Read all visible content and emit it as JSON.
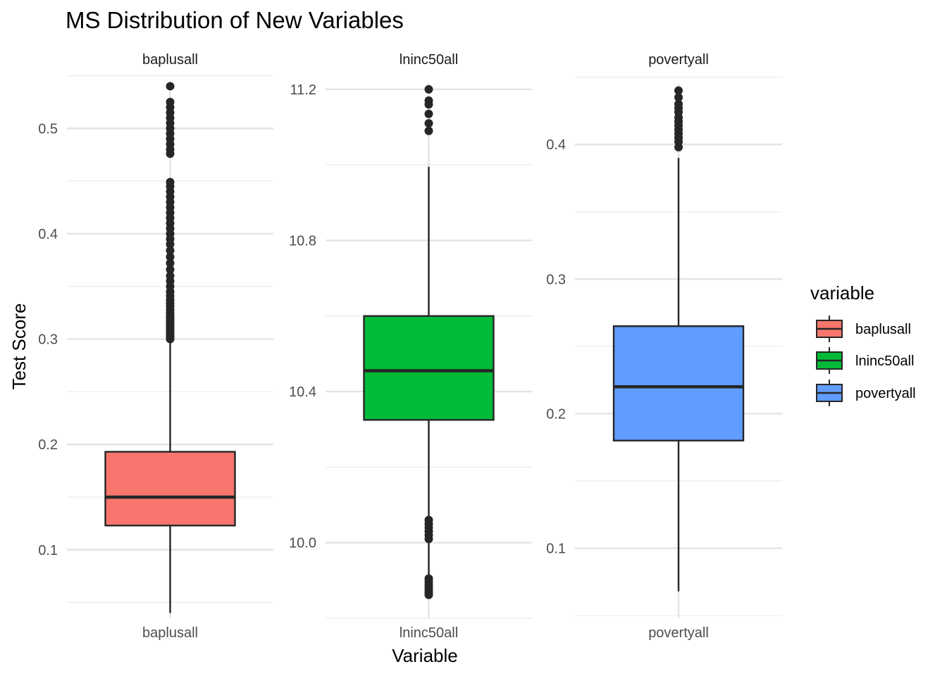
{
  "chart_data": {
    "type": "boxplot",
    "title": "MS Distribution of New Variables",
    "xlabel": "Variable",
    "ylabel": "Test Score",
    "facet_scales": "free_y",
    "grid": true,
    "legend": {
      "title": "variable",
      "position": "right",
      "entries": [
        "baplusall",
        "lninc50all",
        "povertyall"
      ]
    },
    "panels": [
      {
        "name": "baplusall",
        "strip_label": "baplusall",
        "category": "baplusall",
        "color": "#F8766D",
        "ylim": [
          0.035,
          0.555
        ],
        "yticks": [
          0.1,
          0.2,
          0.3,
          0.4,
          0.5
        ],
        "ytick_labels": [
          "0.1",
          "0.2",
          "0.3",
          "0.4",
          "0.5"
        ],
        "minor_ticks": [
          0.05,
          0.15,
          0.25,
          0.35,
          0.45,
          0.55
        ],
        "stats": {
          "whisker_low": 0.04,
          "q1": 0.123,
          "median": 0.15,
          "q3": 0.193,
          "whisker_high": 0.297
        },
        "outliers": [
          0.3,
          0.302,
          0.304,
          0.306,
          0.308,
          0.31,
          0.312,
          0.314,
          0.316,
          0.318,
          0.32,
          0.322,
          0.325,
          0.328,
          0.331,
          0.334,
          0.337,
          0.341,
          0.345,
          0.35,
          0.355,
          0.36,
          0.366,
          0.372,
          0.378,
          0.384,
          0.39,
          0.395,
          0.4,
          0.405,
          0.41,
          0.415,
          0.42,
          0.425,
          0.43,
          0.435,
          0.44,
          0.445,
          0.449,
          0.476,
          0.48,
          0.485,
          0.49,
          0.495,
          0.5,
          0.505,
          0.51,
          0.515,
          0.52,
          0.525,
          0.54
        ]
      },
      {
        "name": "lninc50all",
        "strip_label": "lninc50all",
        "category": "lninc50all",
        "color": "#00BA38",
        "ylim": [
          9.8,
          11.25
        ],
        "yticks": [
          10.0,
          10.4,
          10.8,
          11.2
        ],
        "ytick_labels": [
          "10.0",
          "10.4",
          "10.8",
          "11.2"
        ],
        "minor_ticks": [
          9.8,
          10.2,
          10.6,
          11.0
        ],
        "stats": {
          "whisker_low": 9.91,
          "q1": 10.325,
          "median": 10.455,
          "q3": 10.6,
          "whisker_high": 10.995
        },
        "outliers": [
          9.862,
          9.868,
          9.875,
          9.882,
          9.89,
          9.898,
          9.905,
          10.01,
          10.02,
          10.03,
          10.04,
          10.05,
          10.06,
          11.09,
          11.11,
          11.135,
          11.16,
          11.17,
          11.2
        ]
      },
      {
        "name": "povertyall",
        "strip_label": "povertyall",
        "category": "povertyall",
        "color": "#619CFF",
        "ylim": [
          0.048,
          0.455
        ],
        "yticks": [
          0.1,
          0.2,
          0.3,
          0.4
        ],
        "ytick_labels": [
          "0.1",
          "0.2",
          "0.3",
          "0.4"
        ],
        "minor_ticks": [
          0.05,
          0.15,
          0.25,
          0.35,
          0.45
        ],
        "stats": {
          "whisker_low": 0.068,
          "q1": 0.18,
          "median": 0.22,
          "q3": 0.265,
          "whisker_high": 0.39
        },
        "outliers": [
          0.398,
          0.402,
          0.405,
          0.408,
          0.411,
          0.414,
          0.417,
          0.42,
          0.424,
          0.427,
          0.43,
          0.435,
          0.44
        ]
      }
    ]
  }
}
